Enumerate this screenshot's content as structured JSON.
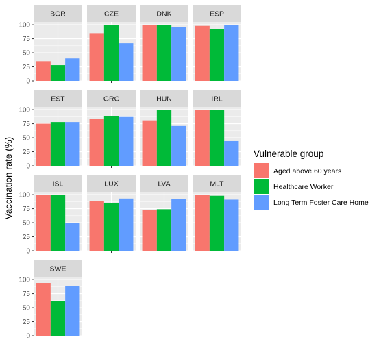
{
  "chart_data": {
    "type": "bar",
    "facet": "wrap",
    "ylabel": "Vaccination rate (%)",
    "xlabel": "",
    "ylim": [
      0,
      105
    ],
    "yticks": [
      0,
      25,
      50,
      75,
      100
    ],
    "grid": true,
    "legend": {
      "title": "Vulnerable group",
      "placement": "right",
      "entries": [
        {
          "name": "Aged above 60 years",
          "color": "#F8766D"
        },
        {
          "name": "Healthcare Worker",
          "color": "#00BA38"
        },
        {
          "name": "Long Term Foster Care Home",
          "color": "#619CFF"
        }
      ]
    },
    "series_names": [
      "Aged above 60 years",
      "Healthcare Worker",
      "Long Term Foster Care Home"
    ],
    "panels": [
      {
        "label": "BGR",
        "values": [
          35,
          28,
          40
        ]
      },
      {
        "label": "CZE",
        "values": [
          85,
          100,
          67
        ]
      },
      {
        "label": "DNK",
        "values": [
          99,
          100,
          96
        ]
      },
      {
        "label": "ESP",
        "values": [
          98,
          92,
          100
        ]
      },
      {
        "label": "EST",
        "values": [
          75,
          78,
          78
        ]
      },
      {
        "label": "GRC",
        "values": [
          84,
          89,
          87
        ]
      },
      {
        "label": "HUN",
        "values": [
          81,
          100,
          71
        ]
      },
      {
        "label": "IRL",
        "values": [
          100,
          100,
          44
        ]
      },
      {
        "label": "ISL",
        "values": [
          100,
          100,
          50
        ]
      },
      {
        "label": "LUX",
        "values": [
          89,
          85,
          93
        ]
      },
      {
        "label": "LVA",
        "values": [
          73,
          74,
          92
        ]
      },
      {
        "label": "MLT",
        "values": [
          99,
          98,
          91
        ]
      },
      {
        "label": "SWE",
        "values": [
          94,
          62,
          89
        ]
      }
    ]
  }
}
